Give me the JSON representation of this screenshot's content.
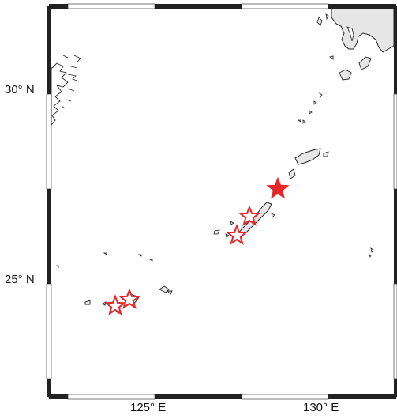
{
  "map": {
    "lat_labels": [
      "30° N",
      "25° N"
    ],
    "lon_labels": [
      "125° E",
      "130° E"
    ],
    "colors": {
      "frame": "#222222",
      "land_fill": "#e6e6e6",
      "coast": "#222222",
      "marker": "#e8262a"
    },
    "markers": [
      {
        "name": "filled-star",
        "style": "filled"
      },
      {
        "name": "hollow-star-1",
        "style": "outline"
      },
      {
        "name": "hollow-star-2",
        "style": "outline"
      },
      {
        "name": "hollow-star-3",
        "style": "outline"
      },
      {
        "name": "hollow-star-4",
        "style": "outline"
      }
    ]
  }
}
